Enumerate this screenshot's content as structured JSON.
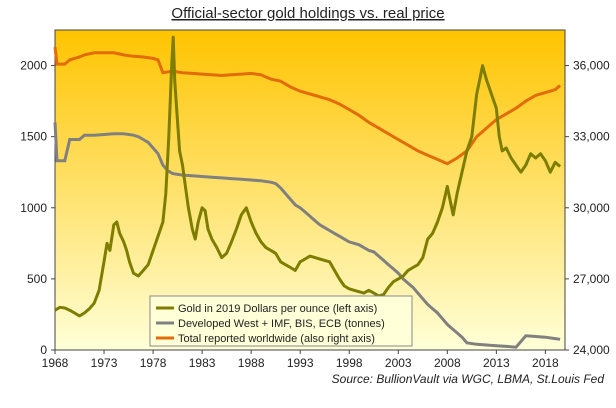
{
  "chart_data": {
    "type": "line",
    "title": "Official-sector gold holdings vs. real price",
    "source": "Source: BullionVault via WGC, LBMA, St.Louis Fed",
    "x_ticks": [
      1968,
      1973,
      1978,
      1983,
      1988,
      1993,
      1998,
      2003,
      2008,
      2013,
      2018
    ],
    "y_left_ticks": [
      0,
      500,
      1000,
      1500,
      2000
    ],
    "y_right_ticks": [
      "24,000",
      "27,000",
      "30,000",
      "33,000",
      "36,000"
    ],
    "xlim": [
      1968,
      2020
    ],
    "ylim_left": [
      0,
      2250
    ],
    "ylim_right": [
      24000,
      37500
    ],
    "grid": false,
    "legend_position": "bottom-left",
    "colors": {
      "gold": "#7d7d00",
      "west": "#808080",
      "total": "#e26b0a",
      "bg_top": "#ffc400",
      "bg_bottom": "#ffffd8"
    },
    "series": [
      {
        "name": "Gold in 2019 Dollars per ounce (left axis)",
        "axis": "left",
        "x": [
          1968.0,
          1968.5,
          1969.0,
          1969.5,
          1970.0,
          1970.5,
          1971.0,
          1971.5,
          1972.0,
          1972.5,
          1973.0,
          1973.3,
          1973.6,
          1974.0,
          1974.3,
          1974.6,
          1975.0,
          1975.3,
          1975.6,
          1976.0,
          1976.5,
          1977.0,
          1977.5,
          1978.0,
          1978.5,
          1979.0,
          1979.3,
          1979.6,
          1979.9,
          1980.05,
          1980.2,
          1980.4,
          1980.7,
          1981.0,
          1981.3,
          1981.6,
          1982.0,
          1982.3,
          1982.6,
          1983.0,
          1983.3,
          1983.6,
          1984.0,
          1984.5,
          1985.0,
          1985.5,
          1986.0,
          1986.5,
          1987.0,
          1987.5,
          1988.0,
          1988.5,
          1989.0,
          1989.5,
          1990.0,
          1990.5,
          1991.0,
          1991.5,
          1992.0,
          1992.5,
          1993.0,
          1993.5,
          1994.0,
          1994.5,
          1995.0,
          1995.5,
          1996.0,
          1996.5,
          1997.0,
          1997.5,
          1998.0,
          1998.5,
          1999.0,
          1999.5,
          2000.0,
          2000.5,
          2001.0,
          2001.5,
          2002.0,
          2002.5,
          2003.0,
          2003.5,
          2004.0,
          2004.5,
          2005.0,
          2005.5,
          2006.0,
          2006.5,
          2007.0,
          2007.5,
          2008.0,
          2008.3,
          2008.6,
          2009.0,
          2009.5,
          2010.0,
          2010.5,
          2011.0,
          2011.3,
          2011.6,
          2012.0,
          2012.5,
          2013.0,
          2013.3,
          2013.6,
          2014.0,
          2014.5,
          2015.0,
          2015.5,
          2016.0,
          2016.5,
          2017.0,
          2017.5,
          2018.0,
          2018.5,
          2019.0,
          2019.5
        ],
        "values": [
          280,
          300,
          295,
          280,
          260,
          240,
          260,
          290,
          330,
          420,
          620,
          750,
          700,
          880,
          900,
          820,
          760,
          700,
          620,
          540,
          520,
          560,
          600,
          700,
          800,
          900,
          1100,
          1500,
          2000,
          2200,
          1900,
          1700,
          1400,
          1300,
          1150,
          1000,
          850,
          780,
          900,
          1000,
          980,
          850,
          780,
          720,
          650,
          680,
          760,
          850,
          950,
          1000,
          900,
          820,
          760,
          720,
          700,
          680,
          620,
          600,
          580,
          560,
          620,
          640,
          660,
          650,
          640,
          630,
          620,
          560,
          500,
          450,
          430,
          420,
          410,
          400,
          420,
          400,
          380,
          390,
          440,
          480,
          500,
          520,
          560,
          580,
          600,
          650,
          780,
          820,
          900,
          1000,
          1150,
          1050,
          950,
          1100,
          1250,
          1400,
          1500,
          1800,
          1900,
          2000,
          1900,
          1800,
          1700,
          1500,
          1400,
          1420,
          1350,
          1300,
          1250,
          1300,
          1380,
          1350,
          1380,
          1330,
          1250,
          1320,
          1290
        ]
      },
      {
        "name": "Developed West + IMF, BIS, ECB (tonnes)",
        "axis": "left",
        "x": [
          1968.0,
          1968.2,
          1969.0,
          1969.5,
          1970.5,
          1971.0,
          1972.0,
          1973.0,
          1974.0,
          1975.0,
          1976.0,
          1976.5,
          1977.0,
          1977.5,
          1978.0,
          1978.5,
          1979.0,
          1979.5,
          1980.0,
          1981.0,
          1982.0,
          1983.0,
          1984.0,
          1985.0,
          1986.0,
          1987.0,
          1988.0,
          1989.0,
          1990.0,
          1990.5,
          1991.0,
          1991.5,
          1992.0,
          1992.5,
          1993.0,
          1993.5,
          1994.0,
          1994.5,
          1995.0,
          1995.5,
          1996.0,
          1996.5,
          1997.0,
          1997.5,
          1998.0,
          1998.5,
          1999.0,
          1999.5,
          2000.0,
          2000.5,
          2001.0,
          2001.5,
          2002.0,
          2002.5,
          2003.0,
          2003.5,
          2004.0,
          2004.5,
          2005.0,
          2005.5,
          2006.0,
          2006.5,
          2007.0,
          2007.5,
          2008.0,
          2008.5,
          2009.0,
          2009.5,
          2010.0,
          2011.0,
          2012.0,
          2013.0,
          2014.0,
          2015.0,
          2016.0,
          2017.0,
          2018.0,
          2019.0,
          2019.5
        ],
        "values": [
          1600,
          1330,
          1330,
          1480,
          1480,
          1510,
          1510,
          1515,
          1520,
          1520,
          1510,
          1500,
          1480,
          1460,
          1420,
          1380,
          1300,
          1260,
          1240,
          1230,
          1225,
          1220,
          1215,
          1210,
          1205,
          1200,
          1195,
          1190,
          1180,
          1170,
          1140,
          1100,
          1060,
          1020,
          1000,
          970,
          940,
          910,
          880,
          860,
          840,
          820,
          800,
          780,
          760,
          750,
          740,
          720,
          700,
          690,
          660,
          630,
          600,
          570,
          540,
          500,
          470,
          440,
          400,
          360,
          320,
          290,
          260,
          220,
          180,
          150,
          120,
          90,
          50,
          40,
          35,
          30,
          25,
          20,
          100,
          95,
          90,
          80,
          75
        ]
      },
      {
        "name": "Total reported worldwide (also right axis)",
        "axis": "left",
        "x": [
          1968.0,
          1968.2,
          1969.0,
          1969.5,
          1970.5,
          1971.0,
          1972.0,
          1973.0,
          1974.0,
          1975.0,
          1976.0,
          1977.0,
          1978.0,
          1978.5,
          1979.0,
          1980.0,
          1981.0,
          1982.0,
          1983.0,
          1984.0,
          1985.0,
          1986.0,
          1987.0,
          1988.0,
          1989.0,
          1990.0,
          1991.0,
          1992.0,
          1993.0,
          1994.0,
          1995.0,
          1996.0,
          1997.0,
          1998.0,
          1999.0,
          2000.0,
          2001.0,
          2002.0,
          2003.0,
          2004.0,
          2005.0,
          2006.0,
          2007.0,
          2008.0,
          2009.0,
          2010.0,
          2011.0,
          2012.0,
          2013.0,
          2014.0,
          2015.0,
          2016.0,
          2017.0,
          2018.0,
          2019.0,
          2019.5
        ],
        "values": [
          2130,
          2010,
          2010,
          2040,
          2060,
          2075,
          2090,
          2090,
          2090,
          2075,
          2065,
          2060,
          2050,
          2040,
          1950,
          1960,
          1950,
          1945,
          1940,
          1935,
          1930,
          1935,
          1940,
          1945,
          1935,
          1905,
          1890,
          1850,
          1820,
          1800,
          1780,
          1760,
          1730,
          1690,
          1650,
          1600,
          1560,
          1520,
          1480,
          1440,
          1400,
          1370,
          1340,
          1310,
          1350,
          1400,
          1500,
          1560,
          1620,
          1660,
          1700,
          1750,
          1790,
          1810,
          1830,
          1860
        ]
      }
    ]
  }
}
